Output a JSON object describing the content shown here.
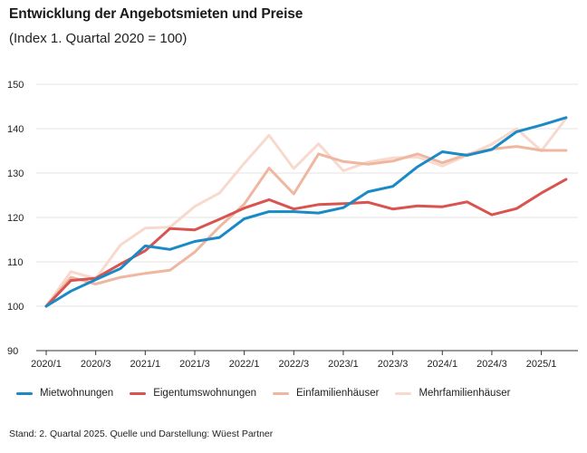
{
  "title": "Entwicklung der Angebotsmieten und Preise",
  "subtitle": "(Index 1. Quartal 2020 = 100)",
  "source": "Stand: 2. Quartal 2025. Quelle und Darstellung: Wüest Partner",
  "chart_data": {
    "type": "line",
    "title": "Entwicklung der Angebotsmieten und Preise",
    "subtitle": "(Index 1. Quartal 2020 = 100)",
    "xlabel": "",
    "ylabel": "",
    "ylim": [
      90,
      150
    ],
    "yticks": [
      90,
      100,
      110,
      120,
      130,
      140,
      150
    ],
    "grid": true,
    "legend_position": "bottom",
    "x": [
      "2020/1",
      "2020/2",
      "2020/3",
      "2020/4",
      "2021/1",
      "2021/2",
      "2021/3",
      "2021/4",
      "2022/1",
      "2022/2",
      "2022/3",
      "2022/4",
      "2023/1",
      "2023/2",
      "2023/3",
      "2023/4",
      "2024/1",
      "2024/2",
      "2024/3",
      "2024/4",
      "2025/1",
      "2025/2"
    ],
    "xtick_labels": [
      "2020/1",
      "2020/3",
      "2021/1",
      "2021/3",
      "2022/1",
      "2022/3",
      "2023/1",
      "2023/3",
      "2024/1",
      "2024/3",
      "2025/1"
    ],
    "series": [
      {
        "name": "Mehrfamilienhäuser",
        "color": "#f8d9cd",
        "values": [
          100,
          107.8,
          106.2,
          113.8,
          117.6,
          117.8,
          122.5,
          125.5,
          132.2,
          138.5,
          131.0,
          136.6,
          130.5,
          132.5,
          133.4,
          133.6,
          131.6,
          134.0,
          136.5,
          140.0,
          135.0,
          142.3
        ]
      },
      {
        "name": "Einfamilienhäuser",
        "color": "#efb6a0",
        "values": [
          100,
          106.5,
          105.0,
          106.5,
          107.4,
          108.1,
          112.2,
          117.9,
          123.0,
          131.1,
          125.3,
          134.3,
          132.6,
          132.0,
          132.7,
          134.3,
          132.3,
          134.2,
          135.4,
          136.0,
          135.1,
          135.1
        ]
      },
      {
        "name": "Eigentumswohnungen",
        "color": "#d9534f",
        "values": [
          100,
          105.8,
          106.3,
          109.5,
          112.5,
          117.5,
          117.2,
          119.6,
          122.1,
          124.0,
          121.9,
          122.9,
          123.1,
          123.4,
          121.9,
          122.6,
          122.4,
          123.5,
          120.6,
          122.0,
          125.5,
          128.6
        ]
      },
      {
        "name": "Mietwohnungen",
        "color": "#1a8ac6",
        "values": [
          100,
          103.4,
          106.0,
          108.5,
          113.6,
          112.8,
          114.6,
          115.5,
          119.7,
          121.3,
          121.3,
          121.0,
          122.2,
          125.8,
          127.0,
          131.4,
          134.8,
          134.0,
          135.3,
          139.3,
          140.8,
          142.5
        ]
      }
    ],
    "legend": [
      "Mietwohnungen",
      "Eigentumswohnungen",
      "Einfamilienhäuser",
      "Mehrfamilienhäuser"
    ]
  }
}
